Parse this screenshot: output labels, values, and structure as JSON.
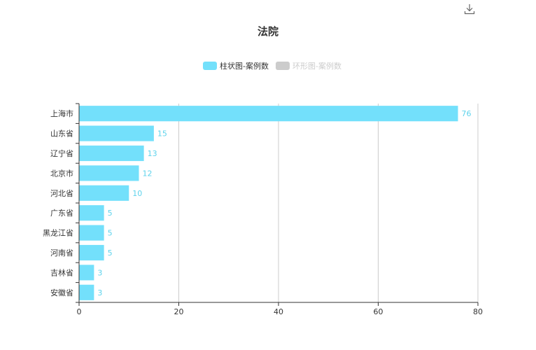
{
  "toolbar": {
    "download_icon": "download-icon"
  },
  "title": "法院",
  "legend": [
    {
      "label": "柱状图-案例数",
      "color": "#73e0fb",
      "active": true
    },
    {
      "label": "环形图-案例数",
      "color": "#cccccc",
      "active": false
    }
  ],
  "colors": {
    "bar": "#73e0fb",
    "label": "#5fd3ec",
    "grid": "#cccccc",
    "axis": "#333333"
  },
  "chart_data": {
    "type": "bar",
    "orientation": "horizontal",
    "title": "法院",
    "categories": [
      "上海市",
      "山东省",
      "辽宁省",
      "北京市",
      "河北省",
      "广东省",
      "黑龙江省",
      "河南省",
      "吉林省",
      "安徽省"
    ],
    "series": [
      {
        "name": "柱状图-案例数",
        "values": [
          76,
          15,
          13,
          12,
          10,
          5,
          5,
          5,
          3,
          3
        ]
      }
    ],
    "xlim": [
      0,
      80
    ],
    "xticks": [
      0,
      20,
      40,
      60,
      80
    ],
    "grid": true,
    "legend_position": "top-center",
    "data_labels": true
  }
}
